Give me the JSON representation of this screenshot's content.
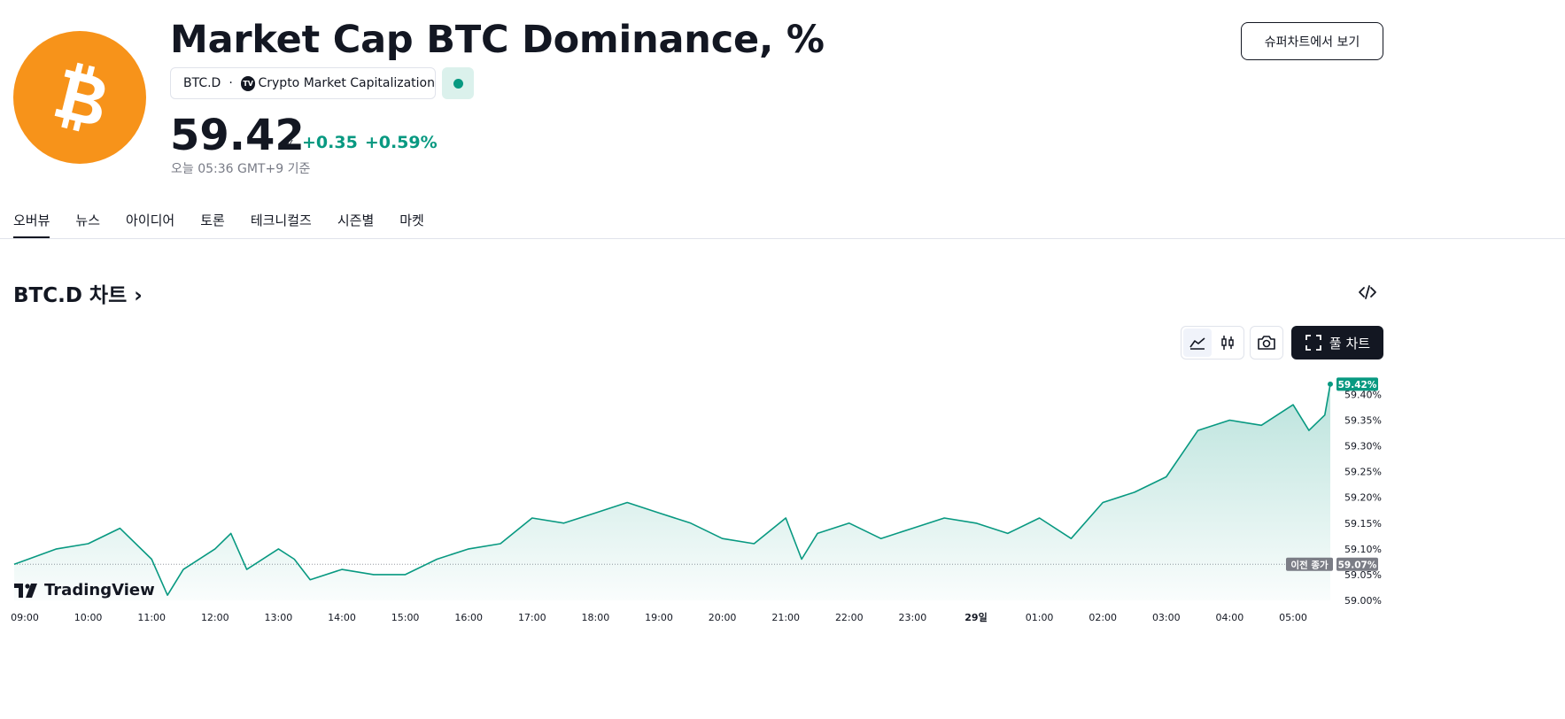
{
  "header": {
    "title": "Market Cap BTC Dominance, %",
    "symbol": "BTC.D",
    "separator": "·",
    "source_icon": "tradingview-icon",
    "source": "Crypto Market Capitalization",
    "status": "market-open",
    "super_chart_button": "슈퍼차트에서 보기"
  },
  "price": {
    "value": "59.42",
    "unit": "%",
    "change": "+0.35",
    "change_pct": "+0.59%",
    "as_of": "오늘 05:36 GMT+9 기준"
  },
  "tabs": [
    "오버뷰",
    "뉴스",
    "아이디어",
    "토론",
    "테크니컬즈",
    "시즌별",
    "마켓"
  ],
  "chart_section": {
    "heading": "BTC.D 차트",
    "full_chart_label": "풀 차트",
    "brand": "TradingView",
    "accent": "#089981",
    "logo_color": "#f7931a"
  },
  "chart_data": {
    "type": "area",
    "title": "BTC.D",
    "x": [
      "09:00",
      "09:30",
      "10:00",
      "10:30",
      "11:00",
      "11:15",
      "11:30",
      "12:00",
      "12:15",
      "12:30",
      "13:00",
      "13:15",
      "13:30",
      "14:00",
      "14:30",
      "15:00",
      "15:30",
      "16:00",
      "16:30",
      "17:00",
      "17:30",
      "18:00",
      "18:30",
      "19:00",
      "19:30",
      "20:00",
      "20:30",
      "21:00",
      "21:15",
      "21:30",
      "22:00",
      "22:30",
      "23:00",
      "23:30",
      "00:00",
      "00:30",
      "01:00",
      "01:30",
      "02:00",
      "02:30",
      "03:00",
      "03:30",
      "04:00",
      "04:30",
      "05:00",
      "05:15",
      "05:30",
      "05:36"
    ],
    "values": [
      59.07,
      59.1,
      59.11,
      59.14,
      59.08,
      59.01,
      59.06,
      59.1,
      59.13,
      59.06,
      59.1,
      59.08,
      59.04,
      59.06,
      59.05,
      59.05,
      59.08,
      59.1,
      59.11,
      59.16,
      59.15,
      59.17,
      59.19,
      59.17,
      59.15,
      59.12,
      59.11,
      59.16,
      59.08,
      59.13,
      59.15,
      59.12,
      59.14,
      59.16,
      59.15,
      59.13,
      59.16,
      59.12,
      59.19,
      59.21,
      59.24,
      59.33,
      59.35,
      59.34,
      59.38,
      59.33,
      59.36,
      59.42
    ],
    "x_ticks": [
      "09:00",
      "10:00",
      "11:00",
      "12:00",
      "13:00",
      "14:00",
      "15:00",
      "16:00",
      "17:00",
      "18:00",
      "19:00",
      "20:00",
      "21:00",
      "22:00",
      "23:00",
      "29일",
      "01:00",
      "02:00",
      "03:00",
      "04:00",
      "05:00"
    ],
    "y_ticks": [
      "59.40%",
      "59.35%",
      "59.30%",
      "59.25%",
      "59.20%",
      "59.15%",
      "59.10%",
      "59.05%",
      "59.00%"
    ],
    "ylim": [
      59.0,
      59.43
    ],
    "last_value_label": "59.42%",
    "previous_close_label": "이전 종가",
    "previous_close_value": "59.07%",
    "previous_close": 59.07
  }
}
